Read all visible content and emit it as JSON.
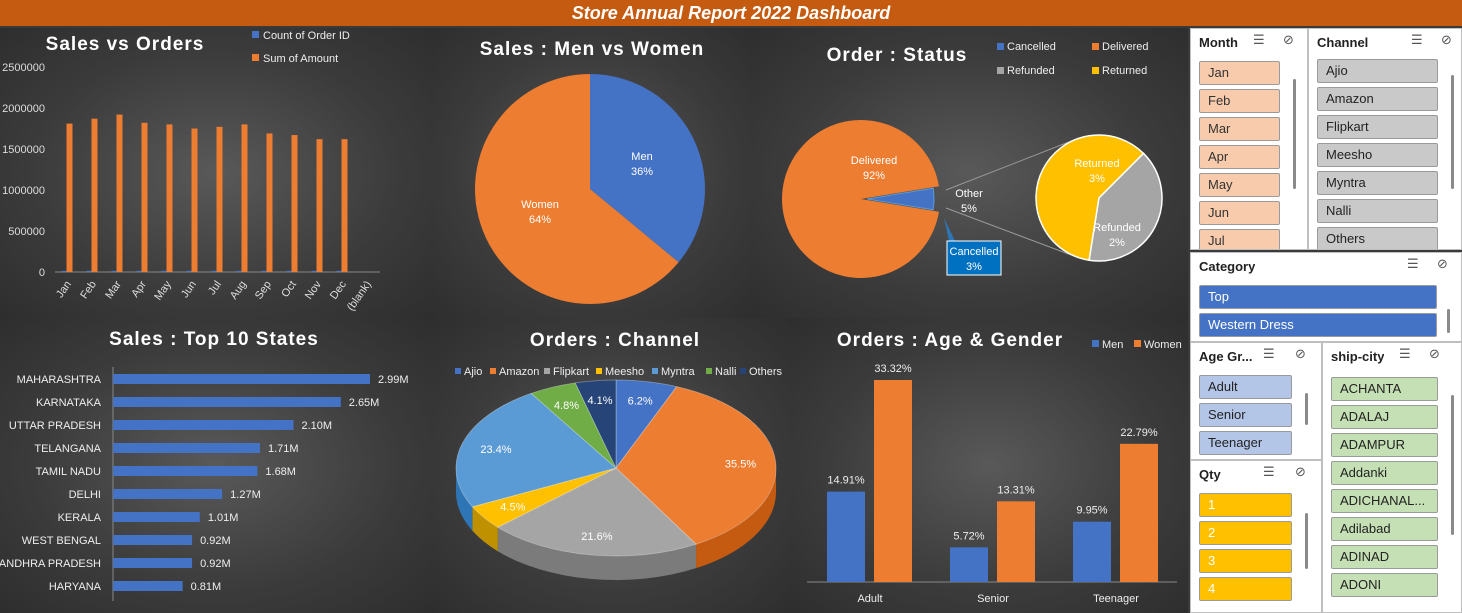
{
  "title": "Store Annual Report 2022 Dashboard",
  "sales_vs_orders": {
    "title": "Sales vs Orders",
    "legend": [
      "Count of Order ID",
      "Sum of Amount"
    ],
    "chart_data": {
      "type": "bar",
      "categories": [
        "Jan",
        "Feb",
        "Mar",
        "Apr",
        "May",
        "Jun",
        "Jul",
        "Aug",
        "Sep",
        "Oct",
        "Nov",
        "Dec",
        "(blank)"
      ],
      "series": [
        {
          "name": "Count of Order ID",
          "values": [
            2800,
            2900,
            3000,
            2850,
            2800,
            2700,
            2750,
            2800,
            2650,
            2600,
            2550,
            2550,
            0
          ]
        },
        {
          "name": "Sum of Amount",
          "values": [
            1810000,
            1870000,
            1920000,
            1820000,
            1800000,
            1750000,
            1770000,
            1800000,
            1690000,
            1670000,
            1620000,
            1620000,
            0
          ]
        }
      ],
      "y_ticks": [
        "0",
        "500000",
        "1000000",
        "1500000",
        "2000000",
        "2500000"
      ],
      "ylim": [
        0,
        2500000
      ],
      "legend_position": "top-right"
    }
  },
  "men_vs_women": {
    "title": "Sales : Men vs Women",
    "chart_data": {
      "type": "pie",
      "labels": [
        "Men",
        "Women"
      ],
      "values": [
        36,
        64
      ],
      "value_labels": [
        "36%",
        "64%"
      ]
    }
  },
  "order_status": {
    "title": "Order : Status",
    "legend": [
      "Cancelled",
      "Delivered",
      "Refunded",
      "Returned"
    ],
    "chart_data": {
      "type": "pie",
      "labels": [
        "Delivered",
        "Other",
        "Cancelled",
        "Returned",
        "Refunded"
      ],
      "main": {
        "labels": [
          "Delivered",
          "Other"
        ],
        "values": [
          92,
          5
        ],
        "value_labels": [
          "92%",
          "5%"
        ]
      },
      "other_breakdown": {
        "labels": [
          "Cancelled",
          "Returned",
          "Refunded"
        ],
        "values": [
          3,
          3,
          2
        ],
        "value_labels": [
          "3%",
          "3%",
          "2%"
        ]
      }
    }
  },
  "top_states": {
    "title": "Sales : Top 10 States",
    "chart_data": {
      "type": "bar",
      "orientation": "horizontal",
      "categories": [
        "MAHARASHTRA",
        "KARNATAKA",
        "UTTAR PRADESH",
        "TELANGANA",
        "TAMIL NADU",
        "DELHI",
        "KERALA",
        "WEST BENGAL",
        "ANDHRA PRADESH",
        "HARYANA"
      ],
      "values": [
        2.99,
        2.65,
        2.1,
        1.71,
        1.68,
        1.27,
        1.01,
        0.92,
        0.92,
        0.81
      ],
      "value_labels": [
        "2.99M",
        "2.65M",
        "2.10M",
        "1.71M",
        "1.68M",
        "1.27M",
        "1.01M",
        "0.92M",
        "0.92M",
        "0.81M"
      ]
    }
  },
  "orders_channel": {
    "title": "Orders : Channel",
    "chart_data": {
      "type": "pie",
      "labels": [
        "Ajio",
        "Amazon",
        "Flipkart",
        "Meesho",
        "Myntra",
        "Nalli",
        "Others"
      ],
      "values": [
        6.2,
        35.5,
        21.6,
        4.5,
        23.4,
        4.8,
        4.1
      ],
      "value_labels": [
        "6.2%",
        "35.5%",
        "21.6%",
        "4.5%",
        "23.4%",
        "4.8%",
        "4.1%"
      ],
      "legend_position": "top"
    }
  },
  "age_gender": {
    "title": "Orders : Age & Gender",
    "chart_data": {
      "type": "bar",
      "categories": [
        "Adult",
        "Senior",
        "Teenager"
      ],
      "series": [
        {
          "name": "Men",
          "values": [
            14.91,
            5.72,
            9.95
          ],
          "value_labels": [
            "14.91%",
            "5.72%",
            "9.95%"
          ]
        },
        {
          "name": "Women",
          "values": [
            33.32,
            13.31,
            22.79
          ],
          "value_labels": [
            "33.32%",
            "13.31%",
            "22.79%"
          ]
        }
      ],
      "legend_position": "top-right"
    }
  },
  "colors": {
    "blue": "#4472c4",
    "orange": "#ed7d31",
    "gray": "#a5a5a5",
    "yellow": "#ffc000",
    "lightblue": "#5b9bd5",
    "green": "#70ad47",
    "navy": "#264478",
    "banner": "#c55a11"
  },
  "slicers": {
    "month": {
      "header": "Month",
      "items": [
        "Jan",
        "Feb",
        "Mar",
        "Apr",
        "May",
        "Jun",
        "Jul"
      ]
    },
    "channel": {
      "header": "Channel",
      "items": [
        "Ajio",
        "Amazon",
        "Flipkart",
        "Meesho",
        "Myntra",
        "Nalli",
        "Others"
      ]
    },
    "category": {
      "header": "Category",
      "items": [
        "Top",
        "Western Dress"
      ]
    },
    "age_group": {
      "header": "Age Gr...",
      "items": [
        "Adult",
        "Senior",
        "Teenager"
      ]
    },
    "ship_city": {
      "header": "ship-city",
      "items": [
        "ACHANTA",
        "ADALAJ",
        "ADAMPUR",
        "Addanki",
        "ADICHANAL...",
        "Adilabad",
        "ADINAD",
        "ADONI"
      ]
    },
    "qty": {
      "header": "Qty",
      "items": [
        "1",
        "2",
        "3",
        "4"
      ]
    }
  },
  "icons": {
    "multi_select": "multi-select-icon",
    "clear_filter": "clear-filter-icon"
  }
}
